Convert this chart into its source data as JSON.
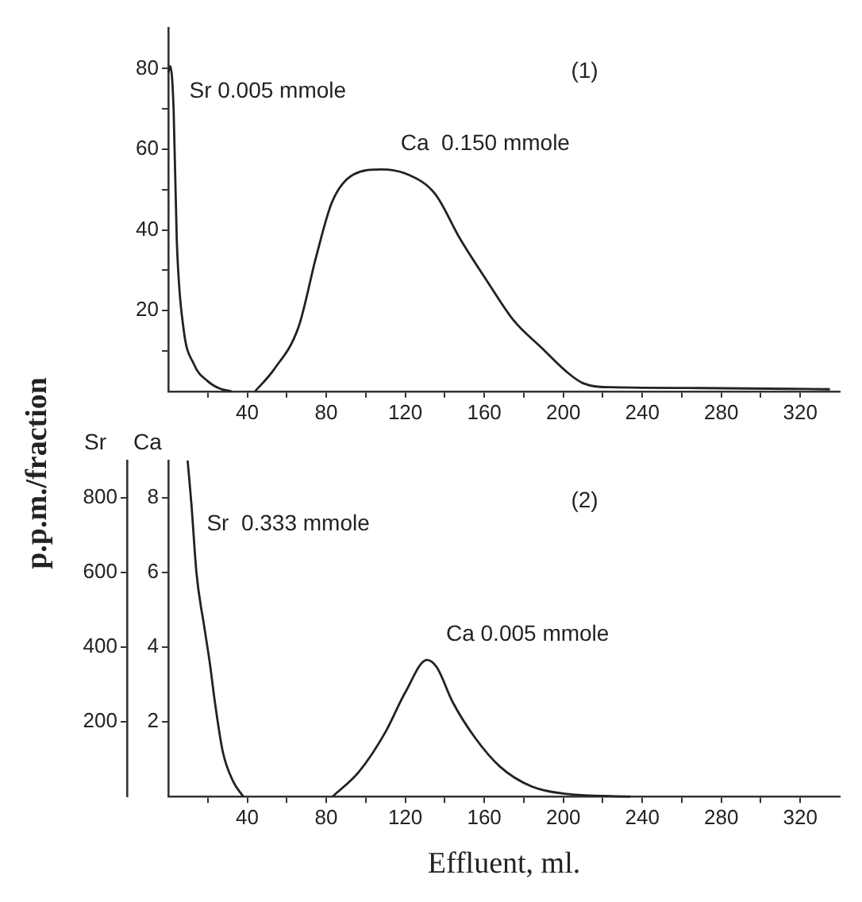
{
  "chart_data": [
    {
      "type": "line",
      "ylabel": "p.p.m./fraction",
      "xlim": [
        0,
        340
      ],
      "ylim": [
        0,
        90
      ],
      "xticks": [
        {
          "value": 20,
          "label": null
        },
        40,
        {
          "value": 60,
          "label": null
        },
        80,
        {
          "value": 100,
          "label": null
        },
        120,
        {
          "value": 140,
          "label": null
        },
        160,
        {
          "value": 180,
          "label": null
        },
        200,
        {
          "value": 220,
          "label": null
        },
        240,
        {
          "value": 260,
          "label": null
        },
        280,
        {
          "value": 300,
          "label": null
        },
        320
      ],
      "yticks": [
        {
          "value": 10,
          "label": null
        },
        20,
        {
          "value": 30,
          "label": null
        },
        40,
        {
          "value": 50,
          "label": null
        },
        60,
        {
          "value": 70,
          "label": null
        },
        80
      ],
      "series": [
        {
          "name": "Sr 0.005 mmole",
          "color": "#222222",
          "x": [
            0,
            1,
            2.7,
            4.3,
            7.6,
            13,
            20,
            26,
            32
          ],
          "values": [
            79,
            80.6,
            70,
            37.6,
            16,
            6.7,
            2.5,
            0.7,
            0
          ]
        },
        {
          "name": "Ca  0.150 mmole",
          "color": "#222222",
          "x": [
            44,
            53.5,
            66,
            75,
            83,
            94,
            108,
            121,
            135,
            148,
            162,
            175,
            189,
            202,
            210,
            224,
            270,
            335
          ],
          "values": [
            0,
            5.4,
            16,
            33.6,
            47,
            53.8,
            55,
            53.8,
            49,
            37.6,
            26.9,
            17.5,
            10.8,
            4.7,
            2,
            1,
            0.8,
            0.5
          ]
        }
      ],
      "annotations": [
        "(1)"
      ]
    },
    {
      "type": "line",
      "xlabel": "Effluent, ml.",
      "ylabel": "Sr",
      "y2label": "Ca",
      "xlim": [
        0,
        340
      ],
      "ylim": [
        0,
        900
      ],
      "y2lim": [
        0,
        9
      ],
      "xticks": [
        {
          "value": 20,
          "label": null
        },
        40,
        {
          "value": 60,
          "label": null
        },
        80,
        {
          "value": 100,
          "label": null
        },
        120,
        {
          "value": 140,
          "label": null
        },
        160,
        {
          "value": 180,
          "label": null
        },
        200,
        {
          "value": 220,
          "label": null
        },
        240,
        {
          "value": 260,
          "label": null
        },
        280,
        {
          "value": 300,
          "label": null
        },
        320
      ],
      "yticks": [
        200,
        400,
        600,
        800
      ],
      "y2ticks": [
        2,
        4,
        6,
        8
      ],
      "series": [
        {
          "name": "Sr  0.333 mmole",
          "color": "#222222",
          "x": [
            9.8,
            11.7,
            14.3,
            18.3,
            21,
            23.6,
            27.6,
            32.9,
            38
          ],
          "values": [
            900,
            785,
            598,
            452,
            359,
            253,
            120,
            40,
            0
          ]
        },
        {
          "name": "Ca 0.005 mmole",
          "color": "#222222",
          "axis": "y2",
          "x": [
            83.2,
            96.5,
            110,
            120,
            131,
            136,
            144,
            155,
            168,
            184,
            202,
            234
          ],
          "values": [
            0,
            0.66,
            1.73,
            2.79,
            3.66,
            3.46,
            2.53,
            1.6,
            0.8,
            0.27,
            0.07,
            0
          ]
        }
      ],
      "annotations": [
        "(2)"
      ]
    }
  ]
}
